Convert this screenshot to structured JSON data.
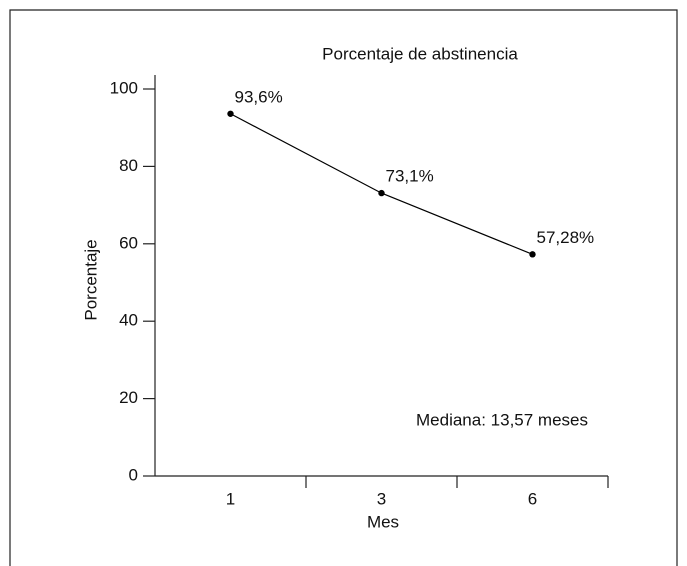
{
  "chart_data": {
    "type": "line",
    "title": "Porcentaje de abstinencia",
    "x_label": "Mes",
    "y_label": "Porcentaje",
    "annotation": "Mediana: 13,57 meses",
    "categories": [
      "1",
      "3",
      "6"
    ],
    "values": [
      93.6,
      73.1,
      57.28
    ],
    "value_labels": [
      "93,6%",
      "73,1%",
      "57,28%"
    ],
    "color": "#000000",
    "ylim": [
      0,
      100
    ],
    "yticks": [
      0,
      20,
      40,
      60,
      80,
      100
    ],
    "grid": false
  }
}
